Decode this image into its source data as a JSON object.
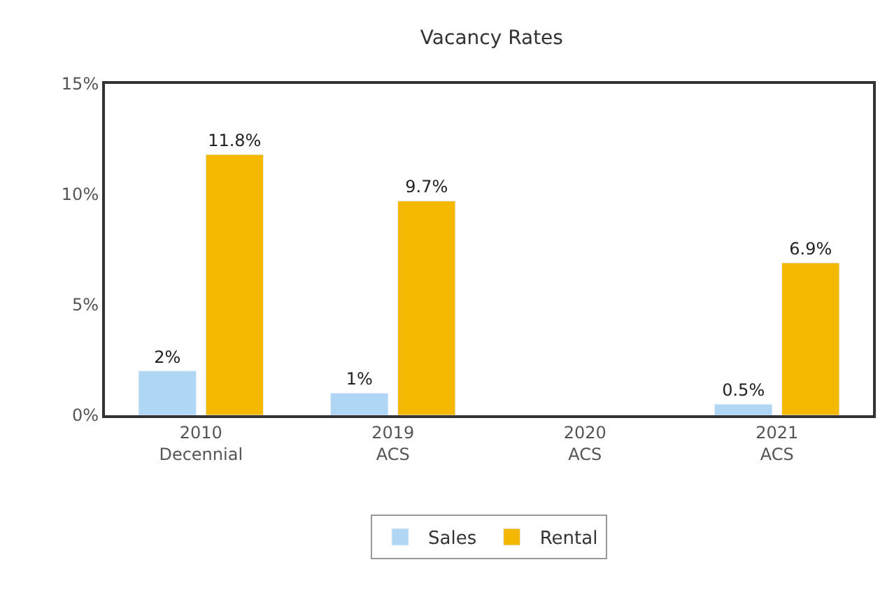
{
  "chart_data": {
    "type": "bar",
    "title": "Vacancy Rates",
    "categories": [
      "2010\nDecennial",
      "2019\nACS",
      "2020\nACS",
      "2021\nACS"
    ],
    "series": [
      {
        "name": "Sales",
        "color": "#afd6f5",
        "values": [
          2,
          1,
          null,
          0.5
        ],
        "value_labels": [
          "2%",
          "1%",
          null,
          "0.5%"
        ]
      },
      {
        "name": "Rental",
        "color": "#f5b800",
        "values": [
          11.8,
          9.7,
          null,
          6.9
        ],
        "value_labels": [
          "11.8%",
          "9.7%",
          null,
          "6.9%"
        ]
      }
    ],
    "ylim": [
      0,
      15
    ],
    "yticks": [
      {
        "value": 0,
        "label": "0%"
      },
      {
        "value": 5,
        "label": "5%"
      },
      {
        "value": 10,
        "label": "10%"
      },
      {
        "value": 15,
        "label": "15%"
      }
    ],
    "grid": false,
    "legend": "bottom"
  }
}
